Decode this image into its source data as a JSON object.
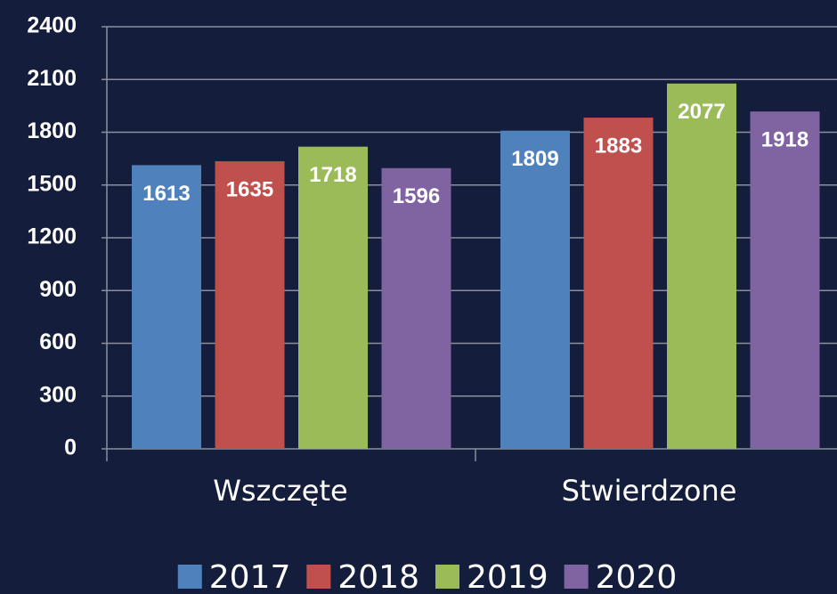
{
  "chart_data": {
    "type": "bar",
    "categories": [
      "Wszczęte",
      "Stwierdzone"
    ],
    "series": [
      {
        "name": "2017",
        "color": "#4f81bd",
        "values": [
          1613,
          1809
        ]
      },
      {
        "name": "2018",
        "color": "#c0504d",
        "values": [
          1635,
          1883
        ]
      },
      {
        "name": "2019",
        "color": "#9bbb59",
        "values": [
          1718,
          2077
        ]
      },
      {
        "name": "2020",
        "color": "#8064a2",
        "values": [
          1596,
          1918
        ]
      }
    ],
    "ylim": [
      0,
      2400
    ],
    "yticks": [
      0,
      300,
      600,
      900,
      1200,
      1500,
      1800,
      2100,
      2400
    ],
    "grid": true,
    "legend": "bottom"
  }
}
